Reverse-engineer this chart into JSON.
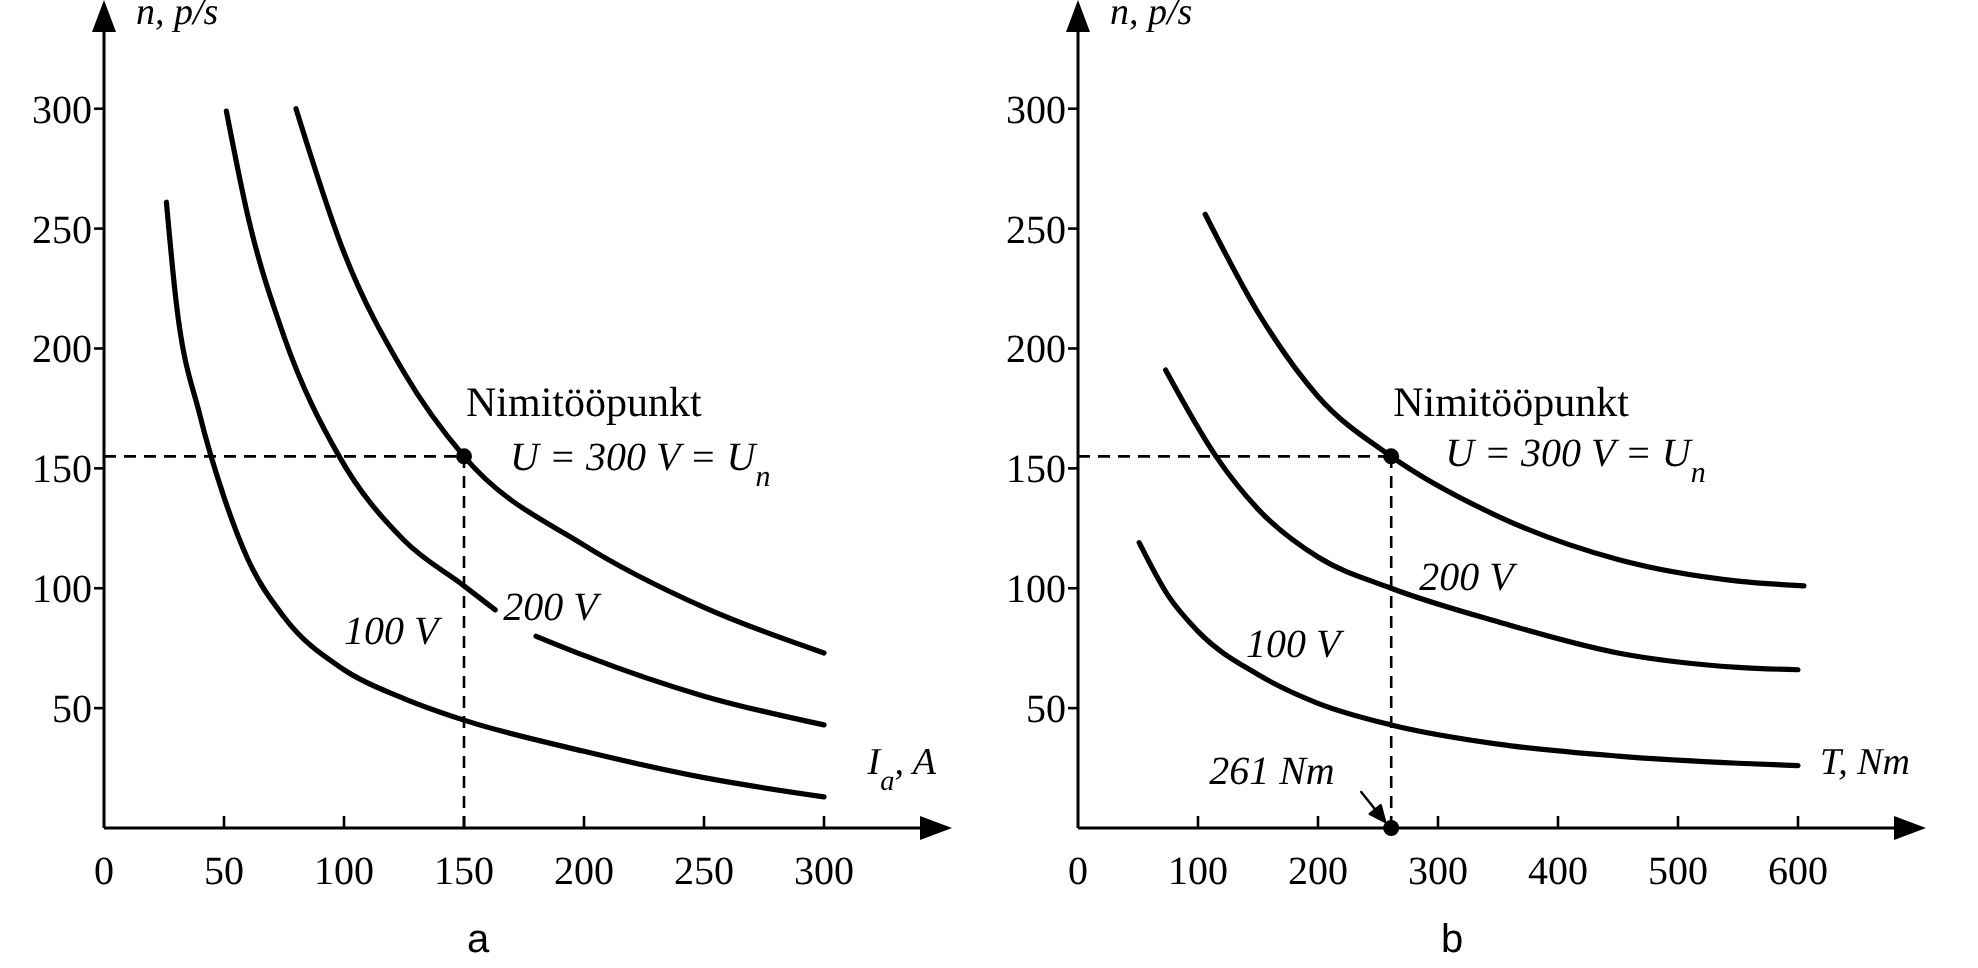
{
  "chart_data": [
    {
      "type": "line",
      "title": "a",
      "xlabel": "I$_{a}$, A",
      "ylabel": "n, p/s",
      "xlim": [
        0,
        345
      ],
      "ylim": [
        0,
        337
      ],
      "xticks": [
        0,
        50,
        100,
        150,
        200,
        250,
        300
      ],
      "yticks": [
        50,
        100,
        150,
        200,
        250,
        300
      ],
      "line_style": "solid",
      "series": [
        {
          "color": "#000000",
          "x": [
            26,
            30,
            40,
            50,
            60,
            75,
            100,
            125,
            150,
            200,
            250,
            300
          ],
          "values": [
            261,
            220,
            172,
            138,
            112,
            88,
            66,
            54,
            45,
            32,
            21,
            13
          ]
        },
        {
          "color": "#000000",
          "x": [
            51,
            60,
            75,
            98,
            125,
            150,
            163
          ],
          "values": [
            299,
            255,
            205,
            155,
            120,
            101,
            91
          ]
        },
        {
          "color": "#000000",
          "x": [
            180,
            200,
            250,
            300
          ],
          "values": [
            80,
            72,
            55,
            43
          ]
        },
        {
          "color": "#000000",
          "x": [
            80,
            100,
            125,
            150,
            200,
            250,
            300
          ],
          "values": [
            300,
            240,
            190,
            155,
            118,
            92,
            73
          ]
        },
        {
          "type": "scatter",
          "marker": "circle",
          "color": "#000000",
          "x": [
            150
          ],
          "values": [
            155
          ]
        }
      ],
      "ref_lines": [
        {
          "axis": "x",
          "value": 150,
          "line_style": "dashed"
        },
        {
          "axis": "y",
          "value": 155,
          "line_style": "dashed"
        }
      ],
      "annotations": [
        {
          "text": "Nimitööpunkt",
          "x": 150,
          "y": 155
        },
        {
          "text": "U = 300 V = U$_{n}$",
          "x": 150,
          "y": 155
        },
        {
          "text": "100 V",
          "x": 100,
          "y": 66
        },
        {
          "text": "200 V",
          "x": 163,
          "y": 91
        }
      ]
    },
    {
      "type": "line",
      "title": "b",
      "xlabel": "T, Nm",
      "ylabel": "n, p/s",
      "xlim": [
        0,
        690
      ],
      "ylim": [
        0,
        337
      ],
      "xticks": [
        0,
        100,
        200,
        300,
        400,
        500,
        600
      ],
      "yticks": [
        50,
        100,
        150,
        200,
        250,
        300
      ],
      "line_style": "solid",
      "series": [
        {
          "color": "#000000",
          "x": [
            51,
            75,
            100,
            150,
            200,
            261,
            350,
            450,
            550,
            600
          ],
          "values": [
            119,
            97,
            82,
            64,
            52,
            43,
            35,
            30,
            27,
            26
          ]
        },
        {
          "color": "#000000",
          "x": [
            73,
            115,
            150,
            200,
            261,
            350,
            450,
            550,
            600
          ],
          "values": [
            191,
            155,
            133,
            113,
            100,
            86,
            73,
            67,
            66
          ]
        },
        {
          "color": "#000000",
          "x": [
            106,
            150,
            200,
            261,
            350,
            450,
            550,
            605
          ],
          "values": [
            256,
            215,
            180,
            155,
            130,
            112,
            103,
            101
          ]
        },
        {
          "type": "scatter",
          "marker": "circle",
          "color": "#000000",
          "x": [
            261,
            261
          ],
          "values": [
            155,
            0
          ]
        }
      ],
      "ref_lines": [
        {
          "axis": "x",
          "value": 261,
          "line_style": "dashed"
        },
        {
          "axis": "y",
          "value": 155,
          "line_style": "dashed"
        }
      ],
      "annotations": [
        {
          "text": "Nimitööpunkt",
          "x": 261,
          "y": 155
        },
        {
          "text": "U = 300 V = U$_{n}$",
          "x": 261,
          "y": 155
        },
        {
          "text": "200 V",
          "x": 261,
          "y": 100
        },
        {
          "text": "100 V",
          "x": 150,
          "y": 64
        },
        {
          "text": "261 Nm",
          "x": 261,
          "y": 0
        }
      ]
    }
  ]
}
